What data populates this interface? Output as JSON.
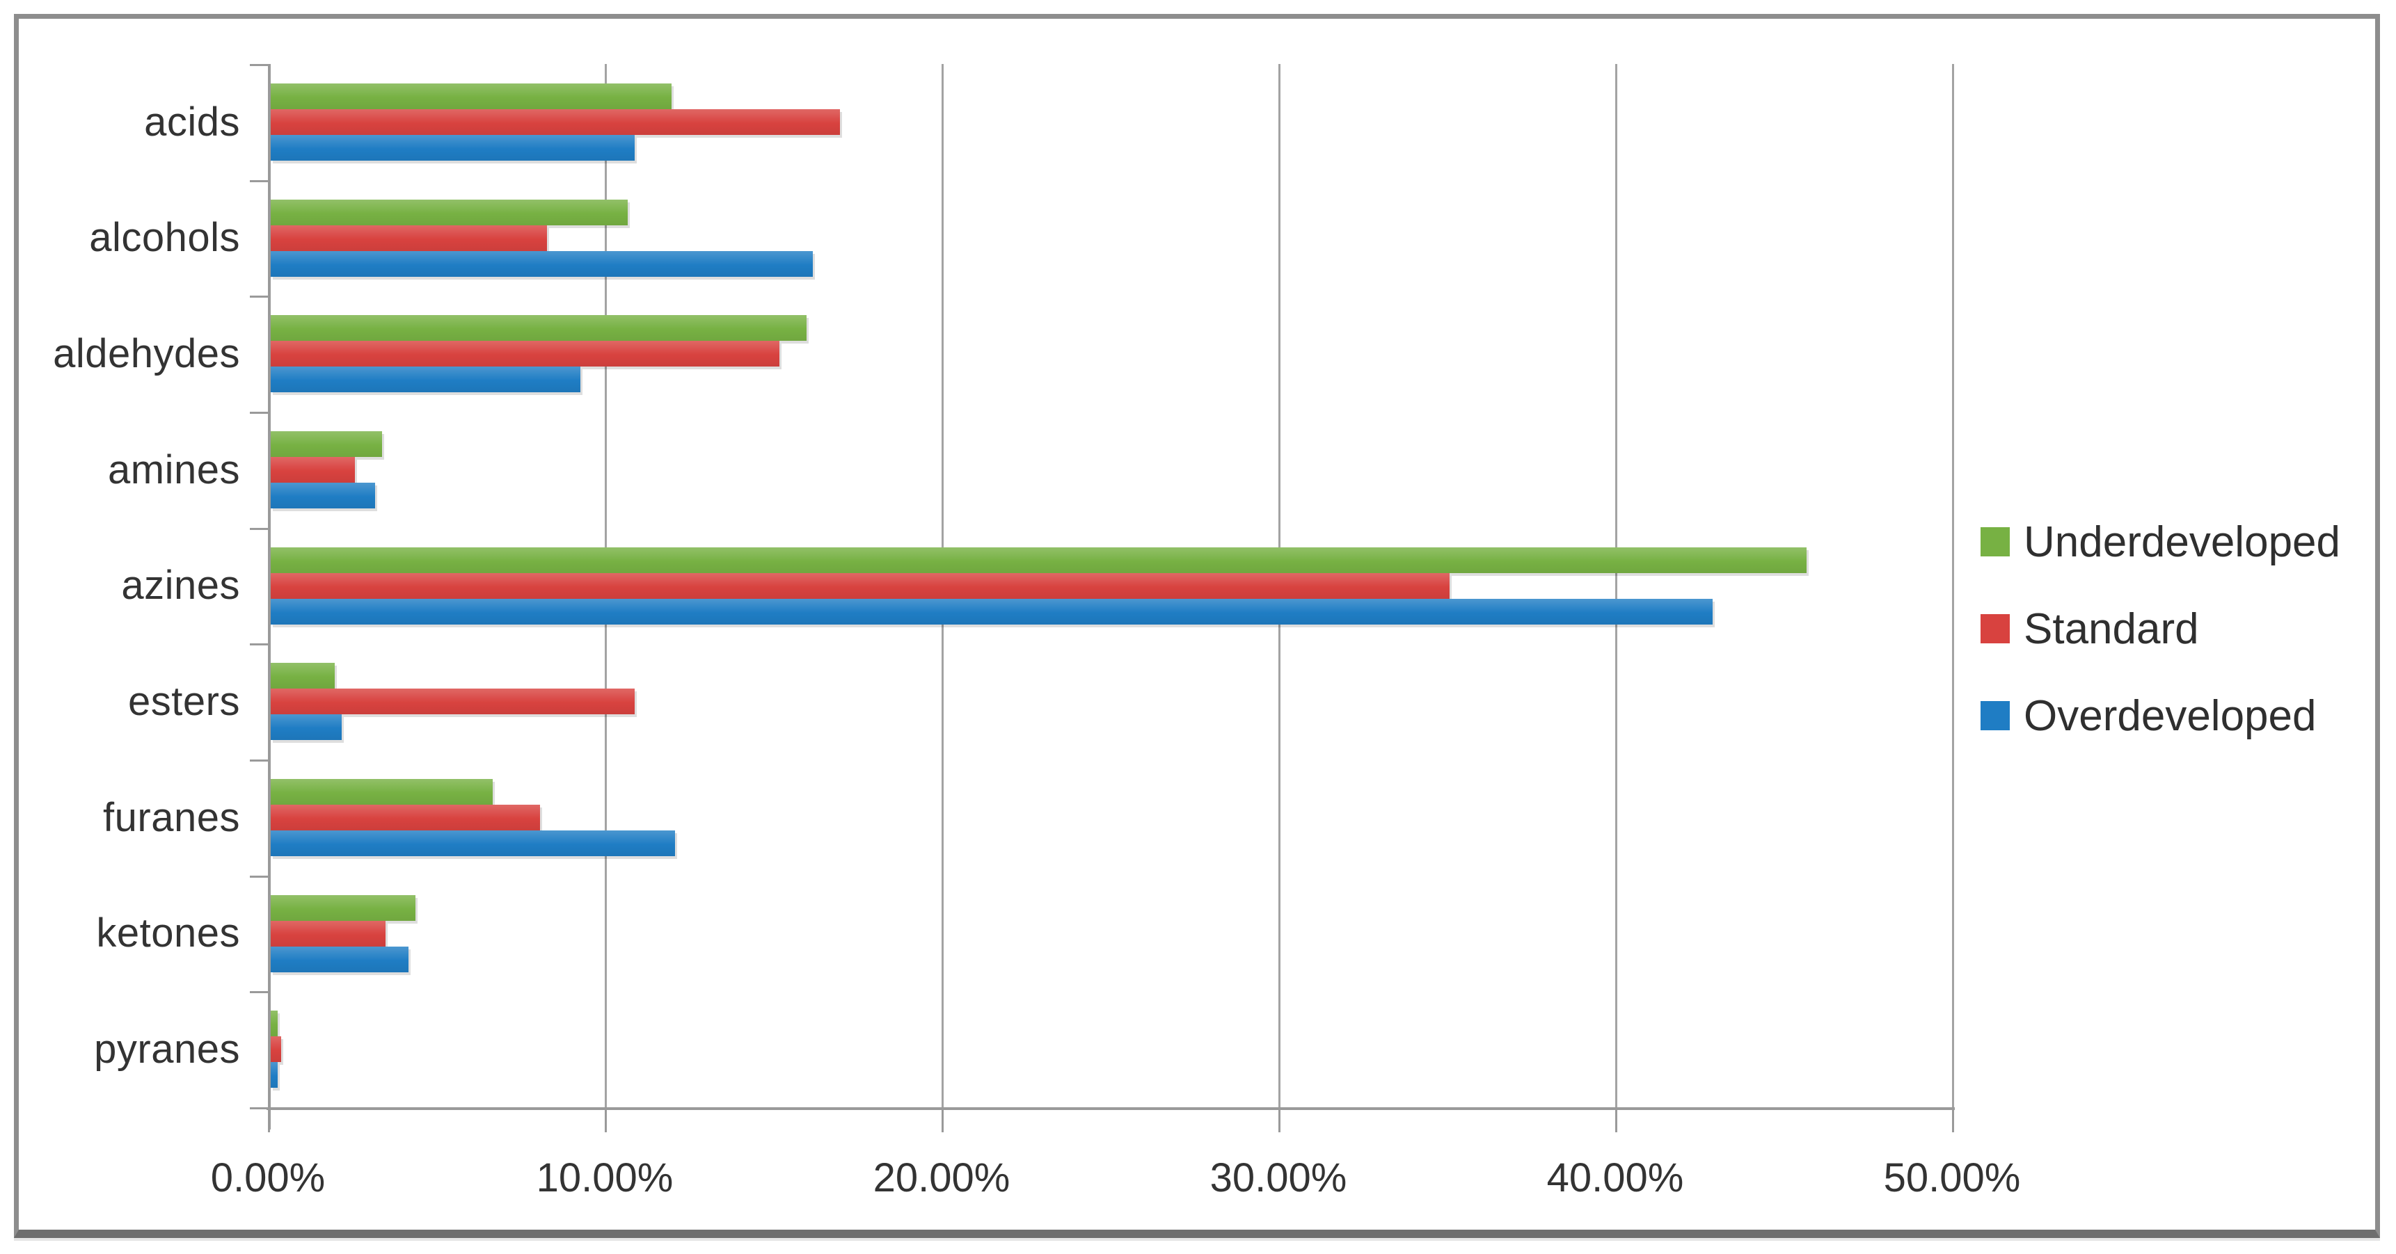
{
  "figure": {
    "background": "#ffffff",
    "frame_border_color": "#8d8d8d",
    "frame_bottom_color": "#6e6e6e",
    "gridline_color": "#a3a3a3",
    "axis_color": "#9a9a9a",
    "text_color": "#333333"
  },
  "chart_data": {
    "type": "bar",
    "orientation": "horizontal",
    "value_unit": "percent",
    "categories": [
      "acids",
      "alcohols",
      "aldehydes",
      "amines",
      "azines",
      "esters",
      "furanes",
      "ketones",
      "pyranes"
    ],
    "series": [
      {
        "name": "Underdeveloped",
        "color": "#77B143",
        "values": [
          11.9,
          10.6,
          15.9,
          3.3,
          45.6,
          1.9,
          6.6,
          4.3,
          0.2
        ]
      },
      {
        "name": "Standard",
        "color": "#D8423F",
        "values": [
          16.9,
          8.2,
          15.1,
          2.5,
          35.0,
          10.8,
          8.0,
          3.4,
          0.3
        ]
      },
      {
        "name": "Overdeveloped",
        "color": "#1F7DC4",
        "values": [
          10.8,
          16.1,
          9.2,
          3.1,
          42.8,
          2.1,
          12.0,
          4.1,
          0.2
        ]
      }
    ],
    "x_ticks": [
      "0.00%",
      "10.00%",
      "20.00%",
      "30.00%",
      "40.00%",
      "50.00%"
    ],
    "xlim": [
      0,
      50
    ],
    "x_tick_step": 10,
    "grid": "vertical gridlines on",
    "legend_position": "right-center"
  }
}
